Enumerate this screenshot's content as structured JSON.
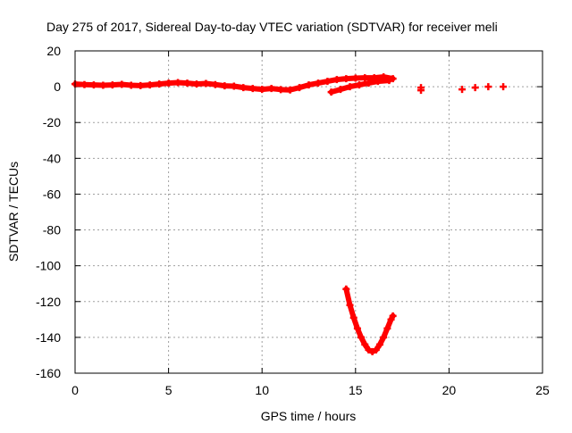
{
  "chart_data": {
    "type": "scatter",
    "title": "Day 275 of 2017, Sidereal Day-to-day VTEC variation (SDTVAR) for receiver meli",
    "xlabel": "GPS time / hours",
    "ylabel": "SDTVAR / TECUs",
    "xlim": [
      0,
      25
    ],
    "ylim": [
      -160,
      20
    ],
    "x_ticks": [
      0,
      5,
      10,
      15,
      20,
      25
    ],
    "y_ticks": [
      -160,
      -140,
      -120,
      -100,
      -80,
      -60,
      -40,
      -20,
      0,
      20
    ],
    "x_tick_labels": [
      "0",
      "5",
      "10",
      "15",
      "20",
      "25"
    ],
    "y_tick_labels": [
      "-160",
      "-140",
      "-120",
      "-100",
      "-80",
      "-60",
      "-40",
      "-20",
      "0",
      "20"
    ],
    "grid": true,
    "marker": "+",
    "colors": {
      "series": "#ff0000",
      "grid": "#a0a0a0",
      "axis": "#000000"
    },
    "series": [
      {
        "name": "SDTVAR",
        "points": [
          [
            0.0,
            1.5
          ],
          [
            0.5,
            1.2
          ],
          [
            1.0,
            1.0
          ],
          [
            1.5,
            0.8
          ],
          [
            2.0,
            1.0
          ],
          [
            2.5,
            1.3
          ],
          [
            3.0,
            0.8
          ],
          [
            3.5,
            0.6
          ],
          [
            4.0,
            1.0
          ],
          [
            4.5,
            1.5
          ],
          [
            5.0,
            2.0
          ],
          [
            5.5,
            2.3
          ],
          [
            6.0,
            2.0
          ],
          [
            6.5,
            1.5
          ],
          [
            7.0,
            1.8
          ],
          [
            7.5,
            1.2
          ],
          [
            8.0,
            0.5
          ],
          [
            8.5,
            0.3
          ],
          [
            9.0,
            -0.5
          ],
          [
            9.5,
            -1.0
          ],
          [
            10.0,
            -1.5
          ],
          [
            10.5,
            -1.0
          ],
          [
            11.0,
            -1.6
          ],
          [
            11.5,
            -1.8
          ],
          [
            12.0,
            -0.5
          ],
          [
            12.5,
            1.0
          ],
          [
            13.0,
            2.0
          ],
          [
            13.5,
            3.0
          ],
          [
            14.0,
            4.0
          ],
          [
            14.5,
            4.5
          ],
          [
            15.0,
            4.8
          ],
          [
            15.5,
            5.0
          ],
          [
            16.0,
            5.0
          ],
          [
            16.5,
            5.5
          ],
          [
            17.0,
            4.5
          ],
          [
            13.7,
            -3.0
          ],
          [
            14.2,
            -1.5
          ],
          [
            14.7,
            0.0
          ],
          [
            15.2,
            1.0
          ],
          [
            15.7,
            2.0
          ],
          [
            16.2,
            3.0
          ],
          [
            16.8,
            3.5
          ],
          [
            14.5,
            -113
          ],
          [
            14.7,
            -122
          ],
          [
            14.9,
            -129
          ],
          [
            15.1,
            -135
          ],
          [
            15.3,
            -140
          ],
          [
            15.5,
            -144
          ],
          [
            15.7,
            -147
          ],
          [
            15.9,
            -148
          ],
          [
            16.1,
            -147
          ],
          [
            16.3,
            -144
          ],
          [
            16.5,
            -140
          ],
          [
            16.7,
            -135
          ],
          [
            16.9,
            -130
          ],
          [
            17.0,
            -128
          ],
          [
            18.5,
            -0.5
          ],
          [
            18.5,
            -2.0
          ],
          [
            20.7,
            -1.5
          ],
          [
            21.4,
            -0.5
          ],
          [
            22.1,
            0.0
          ],
          [
            22.9,
            0.0
          ]
        ]
      }
    ]
  }
}
